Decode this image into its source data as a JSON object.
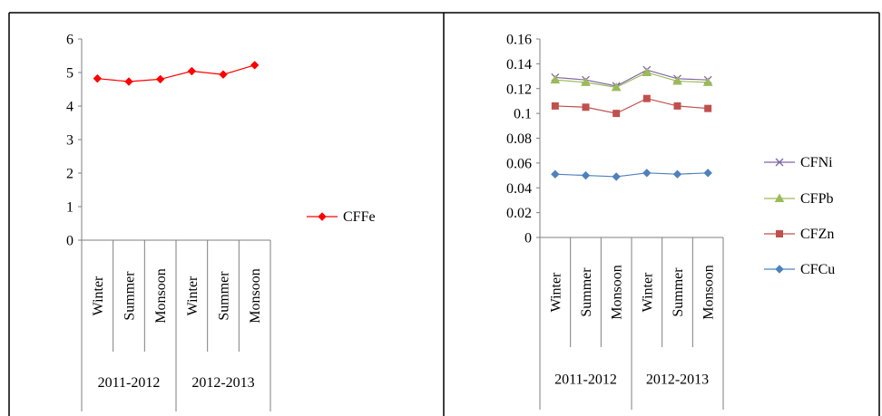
{
  "chart_data": [
    {
      "type": "line",
      "title": "",
      "xlabel": "",
      "ylabel": "",
      "categories": [
        "Winter",
        "Summer",
        "Monsoon",
        "Winter",
        "Summer",
        "Monsoon"
      ],
      "groups": [
        "2011-2012",
        "2012-2013"
      ],
      "ylim": [
        0,
        6
      ],
      "yticks": [
        "0",
        "1",
        "2",
        "3",
        "4",
        "5",
        "6"
      ],
      "grid": false,
      "legend_position": "right",
      "series": [
        {
          "name": "CFFe",
          "color": "#ff0000",
          "marker": "diamond",
          "values": [
            4.82,
            4.73,
            4.8,
            5.04,
            4.94,
            5.22
          ]
        }
      ]
    },
    {
      "type": "line",
      "title": "",
      "xlabel": "",
      "ylabel": "",
      "categories": [
        "Winter",
        "Summer",
        "Monsoon",
        "Winter",
        "Summer",
        "Monsoon"
      ],
      "groups": [
        "2011-2012",
        "2012-2013"
      ],
      "ylim": [
        0,
        0.16
      ],
      "yticks": [
        "0",
        "0.02",
        "0.04",
        "0.06",
        "0.08",
        "0.1",
        "0.12",
        "0.14",
        "0.16"
      ],
      "grid": false,
      "legend_position": "right",
      "series": [
        {
          "name": "CFNi",
          "color": "#8064a2",
          "marker": "x",
          "values": [
            0.129,
            0.127,
            0.122,
            0.135,
            0.128,
            0.127
          ]
        },
        {
          "name": "CFPb",
          "color": "#9bbb59",
          "marker": "triangle",
          "values": [
            0.127,
            0.125,
            0.121,
            0.133,
            0.126,
            0.125
          ]
        },
        {
          "name": "CFZn",
          "color": "#c0504d",
          "marker": "square",
          "values": [
            0.106,
            0.105,
            0.1,
            0.112,
            0.106,
            0.104
          ]
        },
        {
          "name": "CFCu",
          "color": "#4f81bd",
          "marker": "diamond",
          "values": [
            0.051,
            0.05,
            0.049,
            0.052,
            0.051,
            0.052
          ]
        }
      ]
    }
  ]
}
